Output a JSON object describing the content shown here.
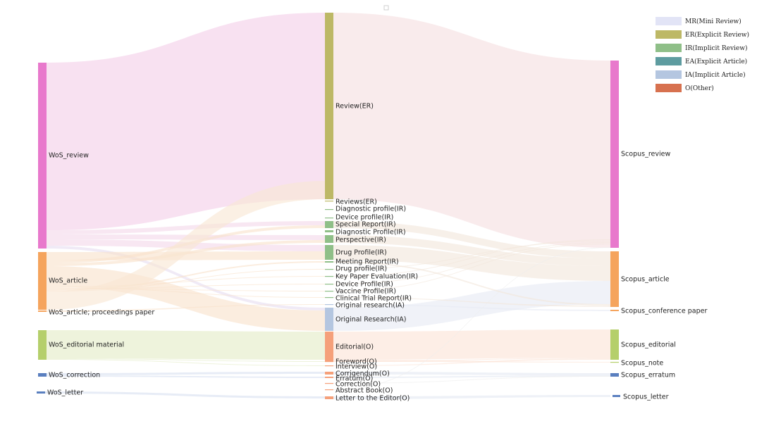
{
  "legend": [
    {
      "label": "MR(Mini Review)",
      "color": "#e2e4f6"
    },
    {
      "label": "ER(Explicit Review)",
      "color": "#bdb866"
    },
    {
      "label": "IR(Implicit Review)",
      "color": "#8fbf88"
    },
    {
      "label": "EA(Explicit Article)",
      "color": "#5e9ca0"
    },
    {
      "label": "IA(Implicit Article)",
      "color": "#b4c6e0"
    },
    {
      "label": "O(Other)",
      "color": "#d7714f"
    }
  ],
  "nodes": {
    "left": [
      {
        "id": "wos_review",
        "label": "WoS_review",
        "color": "#e879cc"
      },
      {
        "id": "wos_article",
        "label": "WoS_article",
        "color": "#f5a45d"
      },
      {
        "id": "wos_proc",
        "label": "WoS_article; proceedings paper",
        "color": "#f5a45d"
      },
      {
        "id": "wos_edit",
        "label": "WoS_editorial material",
        "color": "#b5cf6b"
      },
      {
        "id": "wos_corr",
        "label": "WoS_correction",
        "color": "#5a7fbf"
      },
      {
        "id": "wos_letter",
        "label": "WoS_letter",
        "color": "#5a7fbf"
      }
    ],
    "middle": [
      {
        "id": "review_er",
        "label": "Review(ER)",
        "color": "#bdb866"
      },
      {
        "id": "reviews_er",
        "label": "Reviews(ER)",
        "color": "#bdb866"
      },
      {
        "id": "diag_profile_ir",
        "label": "Diagnostic profile(IR)",
        "color": "#8fbf88"
      },
      {
        "id": "device_profile_ir",
        "label": "Device profile(IR)",
        "color": "#8fbf88"
      },
      {
        "id": "special_report_ir",
        "label": "Special Report(IR)",
        "color": "#8fbf88"
      },
      {
        "id": "diag_Profile_ir",
        "label": "Diagnostic Profile(IR)",
        "color": "#8fbf88"
      },
      {
        "id": "perspective_ir",
        "label": "Perspective(IR)",
        "color": "#8fbf88"
      },
      {
        "id": "drug_Profile_ir",
        "label": "Drug Profile(IR)",
        "color": "#8fbf88"
      },
      {
        "id": "meeting_report_ir",
        "label": "Meeting Report(IR)",
        "color": "#8fbf88"
      },
      {
        "id": "drug_profile_ir",
        "label": "Drug profile(IR)",
        "color": "#8fbf88"
      },
      {
        "id": "key_paper_ir",
        "label": "Key Paper Evaluation(IR)",
        "color": "#8fbf88"
      },
      {
        "id": "device_Profile_ir",
        "label": "Device Profile(IR)",
        "color": "#8fbf88"
      },
      {
        "id": "vaccine_profile_ir",
        "label": "Vaccine Profile(IR)",
        "color": "#8fbf88"
      },
      {
        "id": "clinical_trial_ir",
        "label": "Clinical Trial Report(IR)",
        "color": "#8fbf88"
      },
      {
        "id": "orig_research_ia",
        "label": "Original research(IA)",
        "color": "#b4c6e0"
      },
      {
        "id": "orig_Research_ia",
        "label": "Original Research(IA)",
        "color": "#b4c6e0"
      },
      {
        "id": "editorial_o",
        "label": "Editorial(O)",
        "color": "#f5a07a"
      },
      {
        "id": "foreword_o",
        "label": "Foreword(O)",
        "color": "#f5a07a"
      },
      {
        "id": "interview_o",
        "label": "Interview(O)",
        "color": "#f5a07a"
      },
      {
        "id": "corrigendum_o",
        "label": "Corrigendum(O)",
        "color": "#f5a07a"
      },
      {
        "id": "erratum_o",
        "label": "Erratum(O)",
        "color": "#f5a07a"
      },
      {
        "id": "correction_o",
        "label": "Correction(O)",
        "color": "#f5a07a"
      },
      {
        "id": "abstract_book_o",
        "label": "Abstract Book(O)",
        "color": "#f5a07a"
      },
      {
        "id": "letter_editor_o",
        "label": "Letter to the Editor(O)",
        "color": "#f5a07a"
      }
    ],
    "right": [
      {
        "id": "scopus_review",
        "label": "Scopus_review",
        "color": "#e879cc"
      },
      {
        "id": "scopus_article",
        "label": "Scopus_article",
        "color": "#f5a45d"
      },
      {
        "id": "scopus_conf",
        "label": "Scopus_conference paper",
        "color": "#f5a45d"
      },
      {
        "id": "scopus_edit",
        "label": "Scopus_editorial",
        "color": "#b5cf6b"
      },
      {
        "id": "scopus_note",
        "label": "Scopus_note",
        "color": "#b5cf6b"
      },
      {
        "id": "scopus_erratum",
        "label": "Scopus_erratum",
        "color": "#5a7fbf"
      },
      {
        "id": "scopus_letter",
        "label": "Scopus_letter",
        "color": "#5a7fbf"
      }
    ]
  }
}
